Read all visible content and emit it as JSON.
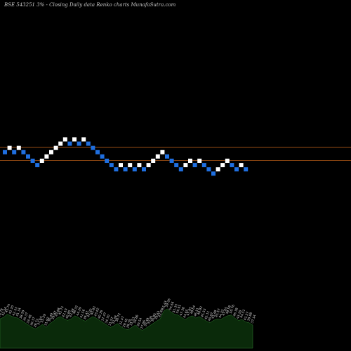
{
  "chart_data": {
    "type": "renko",
    "title": "BSE 543251 3% - Closing Daily data Renko charts MunafaSutra.com",
    "colors": {
      "background": "#000000",
      "up_brick": "#ffffff",
      "down_brick": "#1f6fe0",
      "reference_line": "#c8651a",
      "volume_area": "#0a2a0a",
      "volume_outline": "#2f7a2f"
    },
    "reference_lines": [
      30,
      0
    ],
    "bricks": [
      {
        "dir": "down",
        "level": 2
      },
      {
        "dir": "up",
        "level": 3
      },
      {
        "dir": "down",
        "level": 2
      },
      {
        "dir": "up",
        "level": 3
      },
      {
        "dir": "down",
        "level": 2
      },
      {
        "dir": "down",
        "level": 1
      },
      {
        "dir": "down",
        "level": 0
      },
      {
        "dir": "down",
        "level": -1
      },
      {
        "dir": "up",
        "level": 0
      },
      {
        "dir": "up",
        "level": 1
      },
      {
        "dir": "up",
        "level": 2
      },
      {
        "dir": "up",
        "level": 3
      },
      {
        "dir": "up",
        "level": 4
      },
      {
        "dir": "up",
        "level": 5
      },
      {
        "dir": "down",
        "level": 4
      },
      {
        "dir": "up",
        "level": 5
      },
      {
        "dir": "down",
        "level": 4
      },
      {
        "dir": "up",
        "level": 5
      },
      {
        "dir": "down",
        "level": 4
      },
      {
        "dir": "down",
        "level": 3
      },
      {
        "dir": "down",
        "level": 2
      },
      {
        "dir": "down",
        "level": 1
      },
      {
        "dir": "down",
        "level": 0
      },
      {
        "dir": "down",
        "level": -1
      },
      {
        "dir": "down",
        "level": -2
      },
      {
        "dir": "up",
        "level": -1
      },
      {
        "dir": "down",
        "level": -2
      },
      {
        "dir": "up",
        "level": -1
      },
      {
        "dir": "down",
        "level": -2
      },
      {
        "dir": "up",
        "level": -1
      },
      {
        "dir": "down",
        "level": -2
      },
      {
        "dir": "up",
        "level": -1
      },
      {
        "dir": "up",
        "level": 0
      },
      {
        "dir": "up",
        "level": 1
      },
      {
        "dir": "up",
        "level": 2
      },
      {
        "dir": "down",
        "level": 1
      },
      {
        "dir": "down",
        "level": 0
      },
      {
        "dir": "down",
        "level": -1
      },
      {
        "dir": "down",
        "level": -2
      },
      {
        "dir": "up",
        "level": -1
      },
      {
        "dir": "up",
        "level": 0
      },
      {
        "dir": "down",
        "level": -1
      },
      {
        "dir": "up",
        "level": 0
      },
      {
        "dir": "down",
        "level": -1
      },
      {
        "dir": "down",
        "level": -2
      },
      {
        "dir": "down",
        "level": -3
      },
      {
        "dir": "up",
        "level": -2
      },
      {
        "dir": "up",
        "level": -1
      },
      {
        "dir": "up",
        "level": 0
      },
      {
        "dir": "down",
        "level": -1
      },
      {
        "dir": "down",
        "level": -2
      },
      {
        "dir": "up",
        "level": -1
      },
      {
        "dir": "down",
        "level": -2
      }
    ],
    "volume": [
      {
        "value": 38,
        "label": "40.79"
      },
      {
        "value": 40,
        "label": "42.54"
      },
      {
        "value": 44,
        "label": "45.74"
      },
      {
        "value": 42,
        "label": "43.70"
      },
      {
        "value": 40,
        "label": "42.33"
      },
      {
        "value": 39,
        "label": "41.34"
      },
      {
        "value": 36,
        "label": "38.59"
      },
      {
        "value": 33,
        "label": "35.37"
      },
      {
        "value": 30,
        "label": "33.48"
      },
      {
        "value": 27,
        "label": "30.37"
      },
      {
        "value": 25,
        "label": "28.72"
      },
      {
        "value": 28,
        "label": "31.64"
      },
      {
        "value": 31,
        "label": "35.29"
      },
      {
        "value": 27,
        "label": "31.92"
      },
      {
        "value": 32,
        "label": "36.49"
      },
      {
        "value": 35,
        "label": "39.87"
      },
      {
        "value": 39,
        "label": "43.68"
      },
      {
        "value": 41,
        "label": "45.73"
      },
      {
        "value": 38,
        "label": "42.10"
      },
      {
        "value": 36,
        "label": "40.85"
      },
      {
        "value": 38,
        "label": "42.48"
      },
      {
        "value": 42,
        "label": "46.32"
      },
      {
        "value": 40,
        "label": "44.29"
      },
      {
        "value": 37,
        "label": "41.56"
      },
      {
        "value": 35,
        "label": "39.47"
      },
      {
        "value": 38,
        "label": "42.92"
      },
      {
        "value": 41,
        "label": "45.83"
      },
      {
        "value": 39,
        "label": "43.62"
      },
      {
        "value": 36,
        "label": "40.76"
      },
      {
        "value": 33,
        "label": "37.47"
      },
      {
        "value": 30,
        "label": "34.70"
      },
      {
        "value": 27,
        "label": "31.57"
      },
      {
        "value": 29,
        "label": "33.38"
      },
      {
        "value": 32,
        "label": "36.72"
      },
      {
        "value": 28,
        "label": "32.47"
      },
      {
        "value": 25,
        "label": "29.46"
      },
      {
        "value": 24,
        "label": "28.39"
      },
      {
        "value": 27,
        "label": "31.53"
      },
      {
        "value": 30,
        "label": "34.86"
      },
      {
        "value": 26,
        "label": "30.54"
      },
      {
        "value": 23,
        "label": "27.66"
      },
      {
        "value": 26,
        "label": "30.49"
      },
      {
        "value": 29,
        "label": "33.91"
      },
      {
        "value": 32,
        "label": "36.85"
      },
      {
        "value": 35,
        "label": "39.63"
      },
      {
        "value": 38,
        "label": "42.85"
      },
      {
        "value": 48,
        "label": "55.43"
      },
      {
        "value": 51,
        "label": "59.26"
      },
      {
        "value": 47,
        "label": "54.66"
      },
      {
        "value": 44,
        "label": "51.35"
      },
      {
        "value": 43,
        "label": "50.91"
      },
      {
        "value": 40,
        "label": "47.38"
      },
      {
        "value": 37,
        "label": "44.65"
      },
      {
        "value": 40,
        "label": "47.85"
      },
      {
        "value": 42,
        "label": "49.64"
      },
      {
        "value": 39,
        "label": "46.51"
      },
      {
        "value": 41,
        "label": "48.92"
      },
      {
        "value": 38,
        "label": "45.53"
      },
      {
        "value": 35,
        "label": "42.11"
      },
      {
        "value": 33,
        "label": "40.07"
      },
      {
        "value": 36,
        "label": "43.48"
      },
      {
        "value": 38,
        "label": "45.57"
      },
      {
        "value": 37,
        "label": "44.32"
      },
      {
        "value": 40,
        "label": "47.65"
      },
      {
        "value": 42,
        "label": "49.58"
      },
      {
        "value": 43,
        "label": "50.76"
      },
      {
        "value": 39,
        "label": "46.38"
      },
      {
        "value": 36,
        "label": "43.20"
      },
      {
        "value": 37,
        "label": "44.51"
      },
      {
        "value": 34,
        "label": "41.27"
      },
      {
        "value": 33,
        "label": "39.88"
      },
      {
        "value": 30,
        "label": "37.14"
      }
    ],
    "volume_range": [
      0,
      60
    ]
  }
}
